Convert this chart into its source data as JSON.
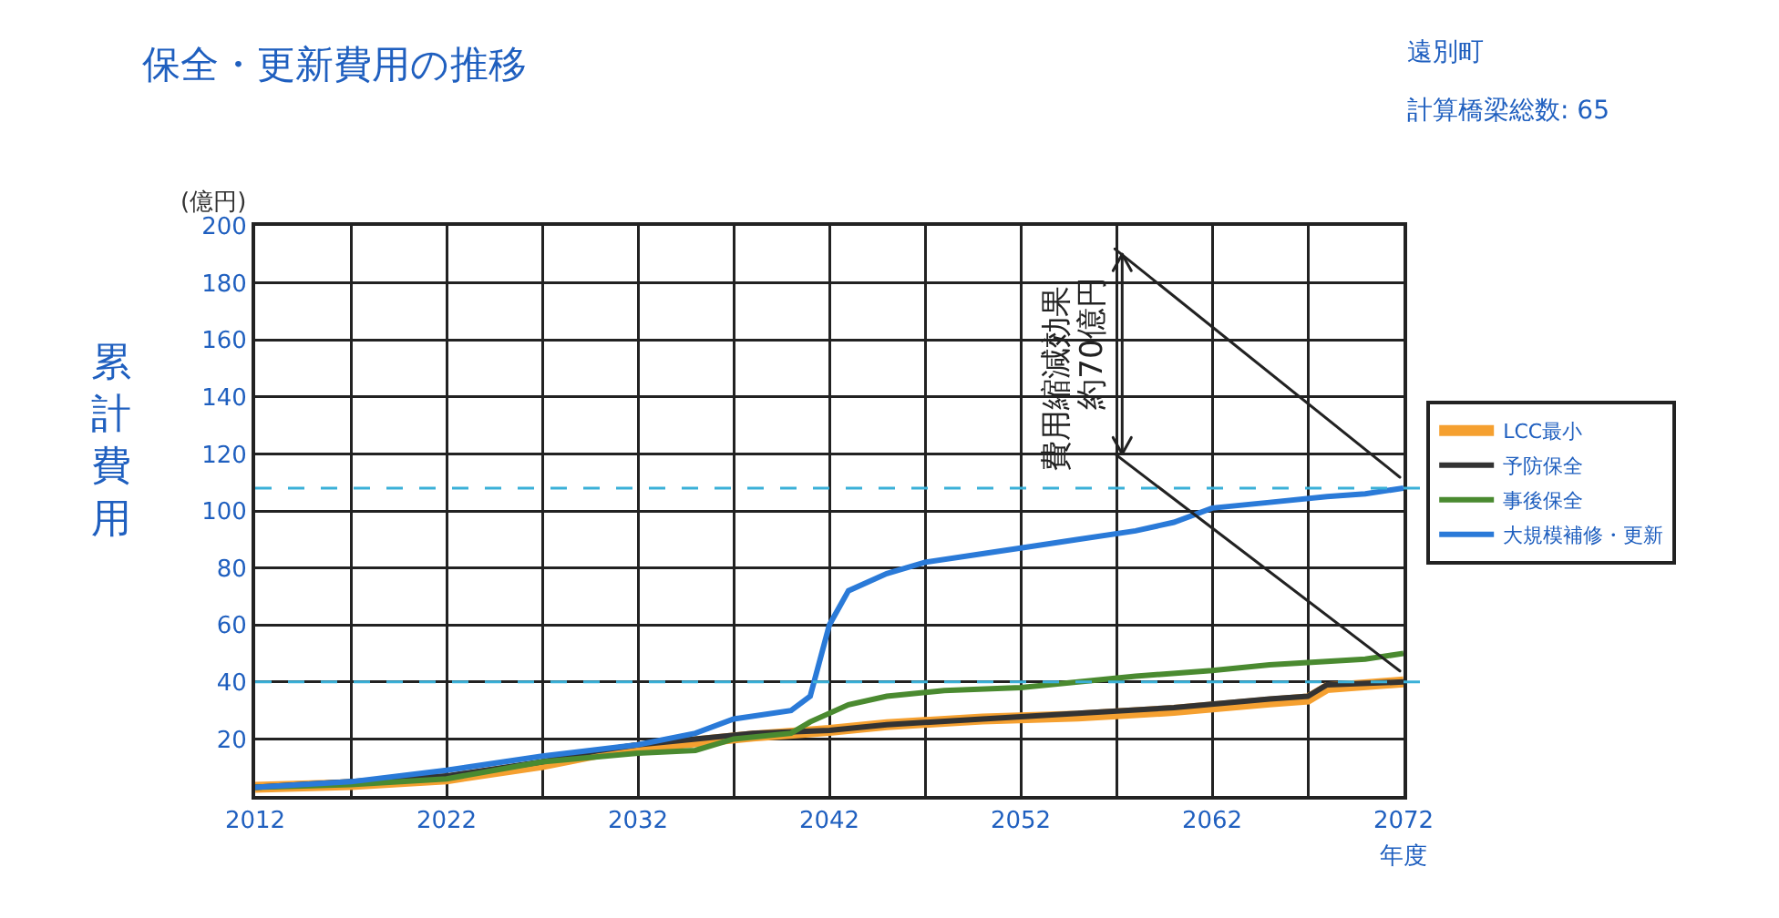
{
  "chart_data": {
    "type": "line",
    "title": "保全・更新費用の推移",
    "subtitle": "遠別町",
    "ylabel": "累計費用",
    "xlabel": "年度",
    "annotations": [
      "(億円)",
      "計算橋梁総数: 65",
      "費用縮減効果",
      "約70億円"
    ],
    "xlim": [
      2012,
      2072
    ],
    "xticks": [
      2012,
      {
        "value": 2017,
        "label": null
      },
      2022,
      {
        "value": 2027,
        "label": null
      },
      2032,
      {
        "value": 2037,
        "label": null
      },
      2042,
      {
        "value": 2047,
        "label": null
      },
      2052,
      {
        "value": 2057,
        "label": null
      },
      2062,
      {
        "value": 2067,
        "label": null
      },
      2072
    ],
    "ylim": [
      0,
      200
    ],
    "yticks": [
      {
        "value": 0,
        "label": null
      },
      20,
      40,
      60,
      80,
      100,
      120,
      140,
      160,
      180,
      200
    ],
    "grid": true,
    "legend": "right",
    "marker": "none",
    "line_style": "solid",
    "ref_lines": [
      {
        "axis": "y",
        "value": 108,
        "color": "#3ab0d8",
        "line_style": "dashed"
      },
      {
        "axis": "y",
        "value": 40,
        "color": "#3ab0d8",
        "line_style": "dashed"
      }
    ],
    "series": [
      {
        "name": "LCC最小",
        "color": "#f5a030",
        "x": [
          2012,
          2017,
          2022,
          2027,
          2030,
          2032,
          2035,
          2038,
          2042,
          2045,
          2050,
          2055,
          2060,
          2065,
          2067,
          2068,
          2072
        ],
        "values": [
          3,
          4,
          6,
          11,
          15,
          17,
          19,
          21,
          23,
          25,
          27,
          28,
          30,
          33,
          34,
          38,
          40
        ]
      },
      {
        "name": "予防保全",
        "color": "#333333",
        "x": [
          2012,
          2017,
          2022,
          2027,
          2030,
          2032,
          2035,
          2038,
          2042,
          2045,
          2050,
          2055,
          2060,
          2065,
          2067,
          2068,
          2072
        ],
        "values": [
          3,
          5,
          7,
          12,
          16,
          18,
          20,
          22,
          23,
          25,
          27,
          29,
          31,
          34,
          35,
          39,
          40
        ]
      },
      {
        "name": "事後保全",
        "color": "#4a8a30",
        "x": [
          2012,
          2017,
          2022,
          2027,
          2032,
          2035,
          2037,
          2040,
          2041,
          2043,
          2045,
          2048,
          2052,
          2055,
          2058,
          2062,
          2065,
          2070,
          2072
        ],
        "values": [
          3,
          4,
          6,
          12,
          15,
          16,
          20,
          22,
          26,
          32,
          35,
          37,
          38,
          40,
          42,
          44,
          46,
          48,
          50
        ]
      },
      {
        "name": "大規模補修・更新",
        "color": "#2a7ad8",
        "x": [
          2012,
          2017,
          2022,
          2027,
          2032,
          2035,
          2037,
          2040,
          2041,
          2042,
          2043,
          2045,
          2047,
          2050,
          2052,
          2055,
          2058,
          2060,
          2062,
          2065,
          2068,
          2070,
          2072
        ],
        "values": [
          3,
          5,
          9,
          14,
          18,
          22,
          27,
          30,
          35,
          60,
          72,
          78,
          82,
          85,
          87,
          90,
          93,
          96,
          101,
          103,
          105,
          106,
          108
        ]
      }
    ]
  }
}
